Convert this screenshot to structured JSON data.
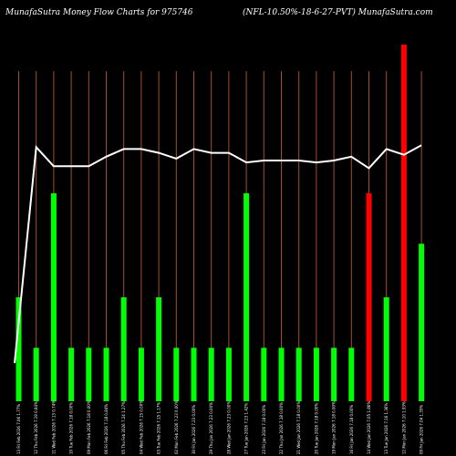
{
  "header": {
    "title_left": "MunafaSutra  Money Flow  Charts for 975746",
    "title_right": "(NFL-10.50%-18-6-27-PVT) MunafaSutra.com"
  },
  "colors": {
    "background": "#000000",
    "grid": "#a0522d",
    "up": "#00ff00",
    "down": "#ff0000",
    "line": "#ffffff",
    "text": "#ffffff"
  },
  "chart_data": {
    "type": "bar",
    "title": "MunafaSutra  Money Flow  Charts for 975746",
    "subtitle": "(NFL-10.50%-18-6-27-PVT) MunafaSutra.com",
    "categories": [
      "13 Fri Feb 2026 7.06 1.77%",
      "12 Thu Feb 2026 7.19 0.84%",
      "11 Wed Feb 2026 7.13 0.74%",
      "10 Tue Feb 2026 7.18 0.00%",
      "09 Mon Feb 2026 7.18 0.00%",
      "06 Fri Feb 2026 7.18 0.84%",
      "05 Thu Feb 2026 7.24 1.27%",
      "04 Wed Feb 2026 7.15 0.00%",
      "03 Tue Feb 2026 7.15 1.17%",
      "02 Mon Feb 2026 7.23 0.00%",
      "30 Fri Jan 2026 7.23 0.00%",
      "29 Thu Jan 2026 7.23 0.00%",
      "28 Wed Jan 2026 7.23 0.00%",
      "27 Tue Jan 2026 7.23 1.42%",
      "23 Fri Jan 2026 7.18 0.00%",
      "22 Thu Jan 2026 7.18 0.00%",
      "21 Wed Jan 2026 7.18 0.00%",
      "20 Tue Jan 2026 7.18 0.00%",
      "19 Mon Jan 2026 7.18 0.00%",
      "16 Fri Jan 2026 7.18 0.00%",
      "14 Wed Jan 2026 7.05 1.86%",
      "13 Tue Jan 2026 7.16 1.36%",
      "12 Mon Jan 2026 7.10 1.93%",
      "09 Fri Jan 2026 7.04 1.35%"
    ],
    "volume": [
      35,
      18,
      70,
      18,
      18,
      18,
      35,
      18,
      35,
      18,
      18,
      18,
      18,
      70,
      18,
      18,
      18,
      18,
      18,
      18,
      70,
      35,
      120,
      53
    ],
    "bar_colors": [
      "up",
      "up",
      "up",
      "up",
      "up",
      "up",
      "up",
      "up",
      "up",
      "up",
      "up",
      "up",
      "up",
      "up",
      "up",
      "up",
      "up",
      "up",
      "up",
      "up",
      "down",
      "up",
      "down",
      "up"
    ],
    "price": [
      6.1,
      7.23,
      7.13,
      7.13,
      7.13,
      7.18,
      7.22,
      7.22,
      7.2,
      7.17,
      7.22,
      7.2,
      7.2,
      7.15,
      7.16,
      7.16,
      7.16,
      7.15,
      7.16,
      7.18,
      7.12,
      7.22,
      7.19,
      7.24
    ],
    "ylim_volume": [
      0,
      135
    ],
    "ylim_price": [
      5.9,
      8.0
    ],
    "legend": "none",
    "grid": true
  }
}
